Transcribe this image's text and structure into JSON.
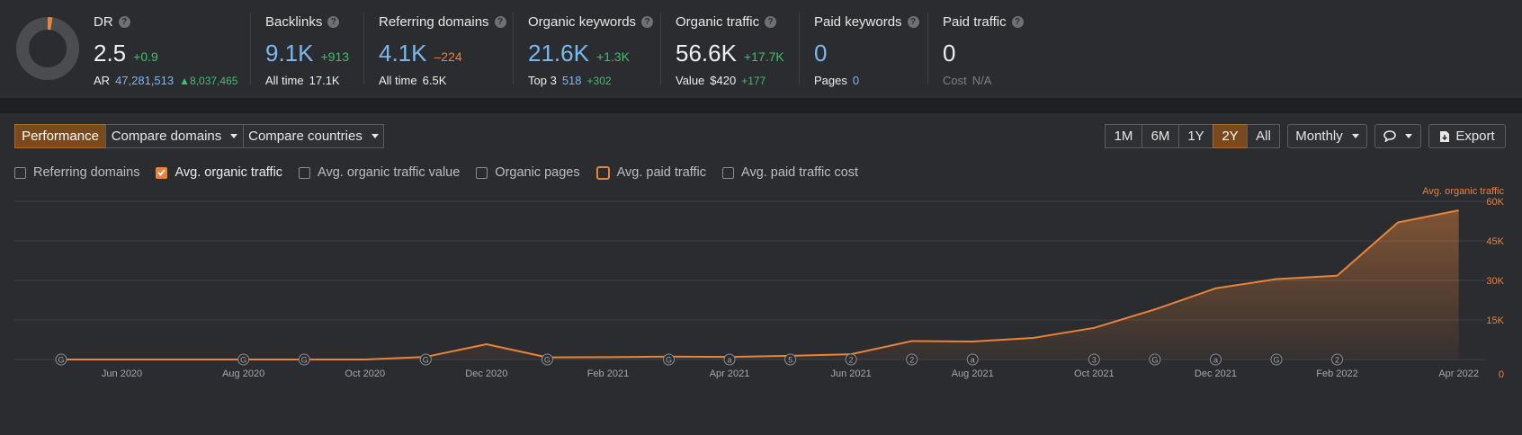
{
  "metrics": {
    "dr": {
      "label": "DR",
      "value": "2.5",
      "delta": "+0.9",
      "ar_label": "AR",
      "ar_value": "47,281,513",
      "ar_delta": "8,037,465"
    },
    "backlinks": {
      "label": "Backlinks",
      "value": "9.1K",
      "delta": "+913",
      "sub_label": "All time",
      "sub_value": "17.1K"
    },
    "referring_domains": {
      "label": "Referring domains",
      "value": "4.1K",
      "delta": "–224",
      "sub_label": "All time",
      "sub_value": "6.5K"
    },
    "organic_keywords": {
      "label": "Organic keywords",
      "value": "21.6K",
      "delta": "+1.3K",
      "sub_label": "Top 3",
      "sub_value": "518",
      "sub_delta": "+302"
    },
    "organic_traffic": {
      "label": "Organic traffic",
      "value": "56.6K",
      "delta": "+17.7K",
      "sub_label": "Value",
      "sub_value": "$420",
      "sub_delta": "+177"
    },
    "paid_keywords": {
      "label": "Paid keywords",
      "value": "0",
      "sub_label": "Pages",
      "sub_value": "0"
    },
    "paid_traffic": {
      "label": "Paid traffic",
      "value": "0",
      "sub_label": "Cost",
      "sub_value": "N/A"
    }
  },
  "toolbar": {
    "performance": "Performance",
    "compare_domains": "Compare domains",
    "compare_countries": "Compare countries",
    "ranges": [
      "1M",
      "6M",
      "1Y",
      "2Y",
      "All"
    ],
    "active_range": "2Y",
    "interval": "Monthly",
    "export": "Export"
  },
  "checkboxes": [
    {
      "label": "Referring domains",
      "checked": false
    },
    {
      "label": "Avg. organic traffic",
      "checked": true
    },
    {
      "label": "Avg. organic traffic value",
      "checked": false
    },
    {
      "label": "Organic pages",
      "checked": false
    },
    {
      "label": "Avg. paid traffic",
      "checked": false
    },
    {
      "label": "Avg. paid traffic cost",
      "checked": false
    }
  ],
  "colors": {
    "accent": "#e8833a",
    "blue": "#7ab8f0",
    "green": "#3fbf6f"
  },
  "chart_data": {
    "type": "area",
    "series": [
      {
        "name": "Avg. organic traffic",
        "x": [
          "May 2020",
          "Jun 2020",
          "Jul 2020",
          "Aug 2020",
          "Sep 2020",
          "Oct 2020",
          "Nov 2020",
          "Dec 2020",
          "Jan 2021",
          "Feb 2021",
          "Mar 2021",
          "Apr 2021",
          "May 2021",
          "Jun 2021",
          "Jul 2021",
          "Aug 2021",
          "Sep 2021",
          "Oct 2021",
          "Nov 2021",
          "Dec 2021",
          "Jan 2022",
          "Feb 2022",
          "Mar 2022",
          "Apr 2022"
        ],
        "values": [
          0,
          0,
          0,
          0,
          0,
          0,
          1000,
          5800,
          800,
          900,
          1100,
          1000,
          1400,
          2000,
          7000,
          6800,
          8200,
          12000,
          19000,
          27000,
          30500,
          31800,
          52000,
          56600
        ]
      }
    ],
    "x_tick_labels": [
      "Jun 2020",
      "Aug 2020",
      "Oct 2020",
      "Dec 2020",
      "Feb 2021",
      "Apr 2021",
      "Jun 2021",
      "Aug 2021",
      "Oct 2021",
      "Dec 2021",
      "Feb 2022",
      "Apr 2022"
    ],
    "y_tick_labels": [
      "0",
      "15K",
      "30K",
      "45K",
      "60K"
    ],
    "ylim": [
      0,
      60000
    ],
    "legend_label": "Avg. organic traffic",
    "grid": true,
    "annotations": [
      "G",
      "",
      "",
      "G",
      "G",
      "",
      "G",
      "",
      "G",
      "",
      "G",
      "a",
      "5",
      "2",
      "2",
      "a",
      "",
      "3",
      "G",
      "a",
      "G",
      "2"
    ]
  }
}
